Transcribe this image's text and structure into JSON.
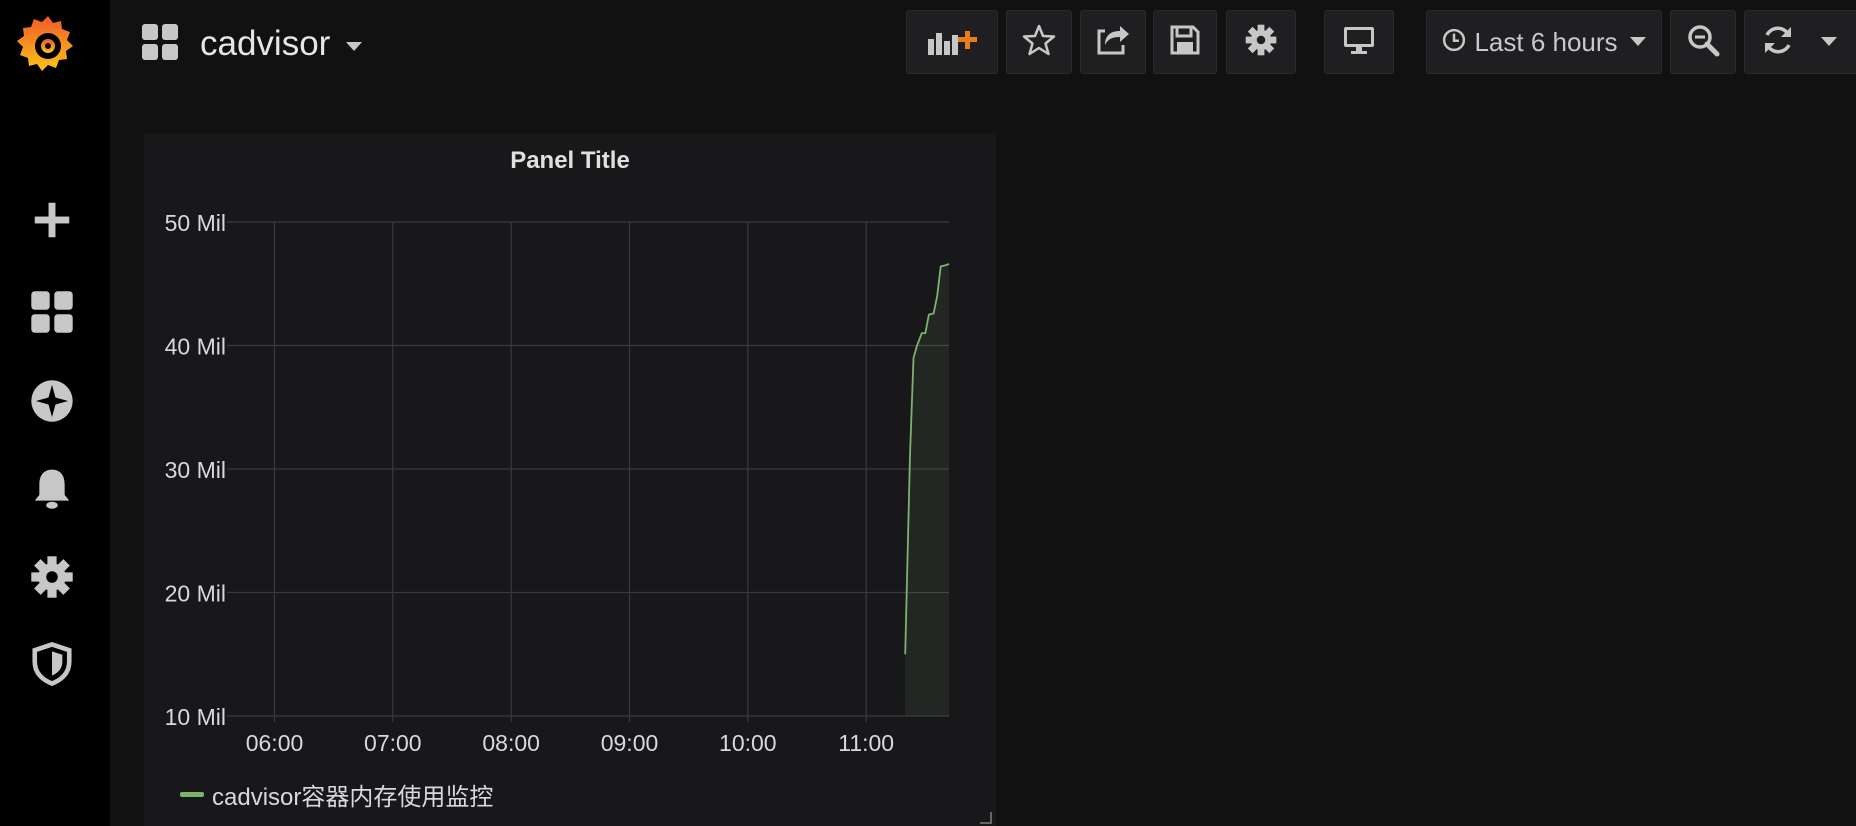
{
  "dashboard": {
    "title": "cadvisor"
  },
  "time_picker": {
    "label": "Last 6 hours"
  },
  "icons": {
    "sidebar": [
      "grafana-logo-icon",
      "plus-icon",
      "dashboards-icon",
      "explore-icon",
      "bell-icon",
      "gear-icon",
      "shield-icon"
    ],
    "toolbar": [
      "add-panel-icon",
      "star-icon",
      "share-icon",
      "save-icon",
      "settings-icon",
      "tv-icon",
      "clock-icon",
      "zoom-out-icon",
      "refresh-icon",
      "caret-down-icon"
    ]
  },
  "colors": {
    "series": "#7eb26d",
    "accent": "#eb7b18"
  },
  "panel": {
    "title": "Panel Title",
    "legend": [
      {
        "name": "cadvisor容器内存使用监控",
        "color": "#7eb26d"
      }
    ]
  },
  "chart_data": {
    "type": "area",
    "title": "Panel Title",
    "x_tick_labels": [
      "06:00",
      "07:00",
      "08:00",
      "09:00",
      "10:00",
      "11:00"
    ],
    "y_tick_labels": [
      "10 Mil",
      "20 Mil",
      "30 Mil",
      "40 Mil",
      "50 Mil"
    ],
    "y_ticks": [
      10,
      20,
      30,
      40,
      50
    ],
    "ylim": [
      10,
      50
    ],
    "xlim_hours": [
      5.7,
      11.7
    ],
    "grid": true,
    "legend_position": "bottom-left",
    "series": [
      {
        "name": "cadvisor容器内存使用监控",
        "color": "#7eb26d",
        "x": [
          11.33,
          11.37,
          11.4,
          11.43,
          11.47,
          11.5,
          11.53,
          11.57,
          11.6,
          11.63,
          11.67,
          11.7
        ],
        "y": [
          15,
          31,
          39,
          40,
          41,
          41,
          42.5,
          42.6,
          44,
          46.4,
          46.5,
          46.6
        ]
      }
    ]
  }
}
